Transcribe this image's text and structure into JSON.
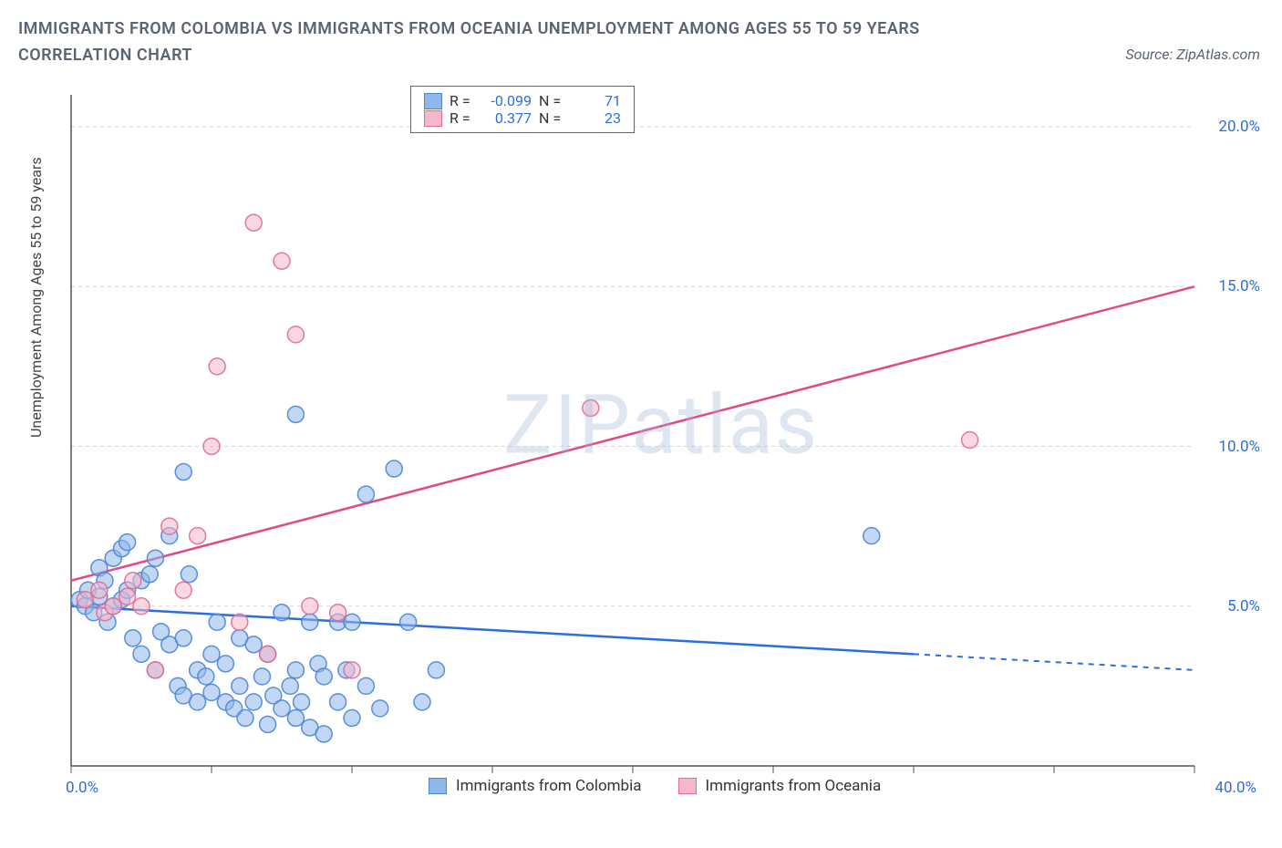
{
  "title": "IMMIGRANTS FROM COLOMBIA VS IMMIGRANTS FROM OCEANIA UNEMPLOYMENT AMONG AGES 55 TO 59 YEARS CORRELATION CHART",
  "source": "Source: ZipAtlas.com",
  "watermark": "ZIPatlas",
  "ylabel": "Unemployment Among Ages 55 to 59 years",
  "legend_top": {
    "series": [
      {
        "r_label": "R =",
        "r_value": "-0.099",
        "n_label": "N =",
        "n_value": "71"
      },
      {
        "r_label": "R =",
        "r_value": "0.377",
        "n_label": "N =",
        "n_value": "23"
      }
    ]
  },
  "legend_bottom": {
    "items": [
      {
        "label": "Immigrants from Colombia"
      },
      {
        "label": "Immigrants from Oceania"
      }
    ]
  },
  "xaxis_labels": {
    "min": "0.0%",
    "max": "40.0%"
  },
  "chart": {
    "type": "scatter",
    "xlim": [
      0,
      40
    ],
    "ylim": [
      0,
      21
    ],
    "x_ticks": [
      0,
      5,
      10,
      15,
      20,
      25,
      30,
      35,
      40
    ],
    "y_ticks": [
      5,
      10,
      15,
      20
    ],
    "y_tick_labels": [
      "5.0%",
      "10.0%",
      "15.0%",
      "20.0%"
    ],
    "grid_color": "#d8d8d8",
    "axis_color": "#555555",
    "background": "#ffffff",
    "marker_radius": 9,
    "marker_opacity": 0.55,
    "series": [
      {
        "name": "colombia",
        "color_fill": "#8fb7ea",
        "color_stroke": "#4a85d6",
        "line_color": "#2b6de2",
        "line": {
          "x1": 0,
          "y1": 5.0,
          "x2": 40,
          "y2": 3.0,
          "dashed_from_x": 30
        },
        "points": [
          [
            0.3,
            5.2
          ],
          [
            0.5,
            5.0
          ],
          [
            0.6,
            5.5
          ],
          [
            0.8,
            4.8
          ],
          [
            1.0,
            5.3
          ],
          [
            1.0,
            6.2
          ],
          [
            1.2,
            5.8
          ],
          [
            1.3,
            4.5
          ],
          [
            1.5,
            6.5
          ],
          [
            1.5,
            5.0
          ],
          [
            1.8,
            5.2
          ],
          [
            1.8,
            6.8
          ],
          [
            2.0,
            5.5
          ],
          [
            2.0,
            7.0
          ],
          [
            2.2,
            4.0
          ],
          [
            2.5,
            3.5
          ],
          [
            2.5,
            5.8
          ],
          [
            2.8,
            6.0
          ],
          [
            3.0,
            3.0
          ],
          [
            3.0,
            6.5
          ],
          [
            3.2,
            4.2
          ],
          [
            3.5,
            7.2
          ],
          [
            3.5,
            3.8
          ],
          [
            3.8,
            2.5
          ],
          [
            4.0,
            9.2
          ],
          [
            4.0,
            4.0
          ],
          [
            4.0,
            2.2
          ],
          [
            4.2,
            6.0
          ],
          [
            4.5,
            3.0
          ],
          [
            4.5,
            2.0
          ],
          [
            4.8,
            2.8
          ],
          [
            5.0,
            3.5
          ],
          [
            5.0,
            2.3
          ],
          [
            5.2,
            4.5
          ],
          [
            5.5,
            2.0
          ],
          [
            5.5,
            3.2
          ],
          [
            5.8,
            1.8
          ],
          [
            6.0,
            2.5
          ],
          [
            6.0,
            4.0
          ],
          [
            6.2,
            1.5
          ],
          [
            6.5,
            2.0
          ],
          [
            6.5,
            3.8
          ],
          [
            6.8,
            2.8
          ],
          [
            7.0,
            1.3
          ],
          [
            7.0,
            3.5
          ],
          [
            7.2,
            2.2
          ],
          [
            7.5,
            1.8
          ],
          [
            7.5,
            4.8
          ],
          [
            7.8,
            2.5
          ],
          [
            8.0,
            1.5
          ],
          [
            8.0,
            3.0
          ],
          [
            8.0,
            11.0
          ],
          [
            8.2,
            2.0
          ],
          [
            8.5,
            4.5
          ],
          [
            8.5,
            1.2
          ],
          [
            8.8,
            3.2
          ],
          [
            9.0,
            2.8
          ],
          [
            9.0,
            1.0
          ],
          [
            9.5,
            4.5
          ],
          [
            9.5,
            2.0
          ],
          [
            9.8,
            3.0
          ],
          [
            10.0,
            4.5
          ],
          [
            10.0,
            1.5
          ],
          [
            10.5,
            8.5
          ],
          [
            10.5,
            2.5
          ],
          [
            11.0,
            1.8
          ],
          [
            11.5,
            9.3
          ],
          [
            12.0,
            4.5
          ],
          [
            12.5,
            2.0
          ],
          [
            13.0,
            3.0
          ],
          [
            28.5,
            7.2
          ]
        ]
      },
      {
        "name": "oceania",
        "color_fill": "#f4b8cb",
        "color_stroke": "#e26a94",
        "line_color": "#e14b83",
        "line": {
          "x1": 0,
          "y1": 5.8,
          "x2": 40,
          "y2": 15.0
        },
        "points": [
          [
            0.5,
            5.2
          ],
          [
            1.0,
            5.5
          ],
          [
            1.2,
            4.8
          ],
          [
            1.5,
            5.0
          ],
          [
            2.0,
            5.3
          ],
          [
            2.2,
            5.8
          ],
          [
            2.5,
            5.0
          ],
          [
            3.0,
            3.0
          ],
          [
            3.5,
            7.5
          ],
          [
            4.0,
            5.5
          ],
          [
            4.5,
            7.2
          ],
          [
            5.0,
            10.0
          ],
          [
            5.2,
            12.5
          ],
          [
            6.0,
            4.5
          ],
          [
            6.5,
            17.0
          ],
          [
            7.0,
            3.5
          ],
          [
            7.5,
            15.8
          ],
          [
            8.0,
            13.5
          ],
          [
            8.5,
            5.0
          ],
          [
            9.5,
            4.8
          ],
          [
            10.0,
            3.0
          ],
          [
            18.5,
            11.2
          ],
          [
            32.0,
            10.2
          ]
        ]
      }
    ]
  }
}
